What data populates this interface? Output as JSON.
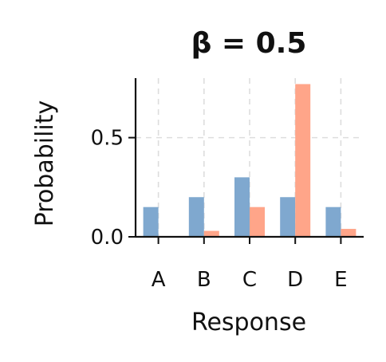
{
  "chart_data": {
    "type": "bar",
    "title": "β = 0.5",
    "xlabel": "Response",
    "ylabel": "Probability",
    "categories": [
      "A",
      "B",
      "C",
      "D",
      "E"
    ],
    "series": [
      {
        "values": [
          0.15,
          0.2,
          0.3,
          0.2,
          0.15
        ],
        "color": "#7fa8cf"
      },
      {
        "values": [
          0.0,
          0.03,
          0.15,
          0.77,
          0.04
        ],
        "color": "#ffa589"
      }
    ],
    "ylim": [
      0,
      0.8
    ],
    "yticks": [
      0.0,
      0.5
    ],
    "ytick_labels": [
      "0.0",
      "0.5"
    ],
    "grid": true,
    "legend": "none"
  }
}
